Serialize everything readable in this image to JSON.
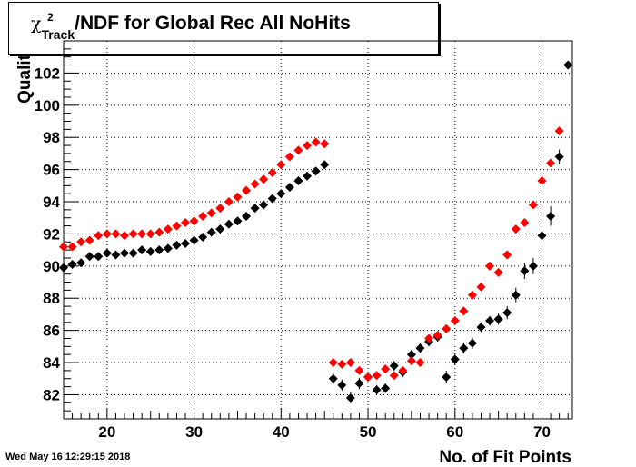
{
  "title": {
    "symbol": "χ",
    "superscript": "2",
    "subscript": "Track",
    "text": "/NDF for Global Rec All NoHits"
  },
  "timestamp": "Wed May 16 12:29:15 2018",
  "chart_data": {
    "type": "scatter",
    "title": "χ²_Track/NDF for Global Rec All NoHits",
    "xlabel": "No. of Fit Points",
    "ylabel": "Qualit",
    "xlim": [
      15,
      73.5
    ],
    "ylim": [
      80.5,
      104
    ],
    "xticks": [
      20,
      30,
      40,
      50,
      60,
      70
    ],
    "yticks": [
      82,
      84,
      86,
      88,
      90,
      92,
      94,
      96,
      98,
      100,
      102
    ],
    "grid": true,
    "legend": "none",
    "series": [
      {
        "color": "#000000",
        "x": [
          15,
          16,
          17,
          18,
          19,
          20,
          21,
          22,
          23,
          24,
          25,
          26,
          27,
          28,
          29,
          30,
          31,
          32,
          33,
          34,
          35,
          36,
          37,
          38,
          39,
          40,
          41,
          42,
          43,
          44,
          45,
          46,
          47,
          48,
          49,
          50,
          51,
          52,
          53,
          54,
          55,
          56,
          57,
          58,
          59,
          60,
          61,
          62,
          63,
          64,
          65,
          66,
          67,
          68,
          69,
          70,
          71,
          72,
          73
        ],
        "y": [
          89.9,
          90.1,
          90.2,
          90.6,
          90.6,
          90.8,
          90.7,
          90.8,
          90.8,
          91.0,
          90.9,
          91.0,
          91.1,
          91.3,
          91.4,
          91.6,
          91.8,
          92.1,
          92.3,
          92.6,
          92.8,
          93.1,
          93.6,
          93.8,
          94.2,
          94.5,
          94.9,
          95.3,
          95.6,
          95.9,
          96.3,
          83.0,
          82.6,
          81.8,
          82.7,
          83.1,
          82.3,
          82.4,
          83.8,
          83.4,
          84.5,
          84.9,
          85.3,
          85.6,
          83.1,
          84.2,
          84.9,
          85.2,
          86.2,
          86.6,
          86.7,
          87.1,
          88.2,
          89.7,
          90.0,
          91.9,
          93.1,
          96.8,
          102.5
        ],
        "yerr": [
          0.1,
          0.1,
          0.1,
          0.1,
          0.1,
          0.1,
          0.1,
          0.1,
          0.1,
          0.1,
          0.1,
          0.1,
          0.1,
          0.1,
          0.1,
          0.1,
          0.1,
          0.1,
          0.1,
          0.1,
          0.1,
          0.1,
          0.1,
          0.1,
          0.1,
          0.1,
          0.1,
          0.1,
          0.1,
          0.1,
          0.1,
          0.35,
          0.35,
          0.35,
          0.35,
          0.3,
          0.3,
          0.3,
          0.3,
          0.3,
          0.3,
          0.3,
          0.3,
          0.3,
          0.4,
          0.35,
          0.35,
          0.35,
          0.3,
          0.3,
          0.35,
          0.4,
          0.45,
          0.5,
          0.5,
          0.55,
          0.6,
          0.45,
          0.2
        ]
      },
      {
        "color": "#ff0000",
        "x": [
          15,
          16,
          17,
          18,
          19,
          20,
          21,
          22,
          23,
          24,
          25,
          26,
          27,
          28,
          29,
          30,
          31,
          32,
          33,
          34,
          35,
          36,
          37,
          38,
          39,
          40,
          41,
          42,
          43,
          44,
          45,
          46,
          47,
          48,
          49,
          50,
          51,
          52,
          53,
          54,
          55,
          56,
          57,
          58,
          59,
          60,
          61,
          62,
          63,
          64,
          65,
          66,
          67,
          68,
          69,
          70,
          71,
          72
        ],
        "y": [
          91.2,
          91.2,
          91.5,
          91.6,
          91.9,
          92.0,
          92.0,
          91.9,
          92.0,
          92.0,
          92.0,
          92.1,
          92.3,
          92.5,
          92.7,
          92.8,
          93.1,
          93.3,
          93.6,
          94.0,
          94.3,
          94.7,
          95.1,
          95.4,
          95.8,
          96.3,
          96.8,
          97.2,
          97.5,
          97.7,
          97.6,
          84.0,
          83.9,
          84.0,
          83.5,
          83.1,
          83.2,
          83.6,
          83.2,
          83.5,
          84.1,
          84.0,
          85.5,
          85.7,
          86.1,
          86.6,
          87.2,
          88.2,
          88.7,
          90.0,
          89.6,
          90.7,
          92.3,
          92.7,
          93.8,
          95.3,
          96.4,
          98.4
        ]
      }
    ]
  }
}
